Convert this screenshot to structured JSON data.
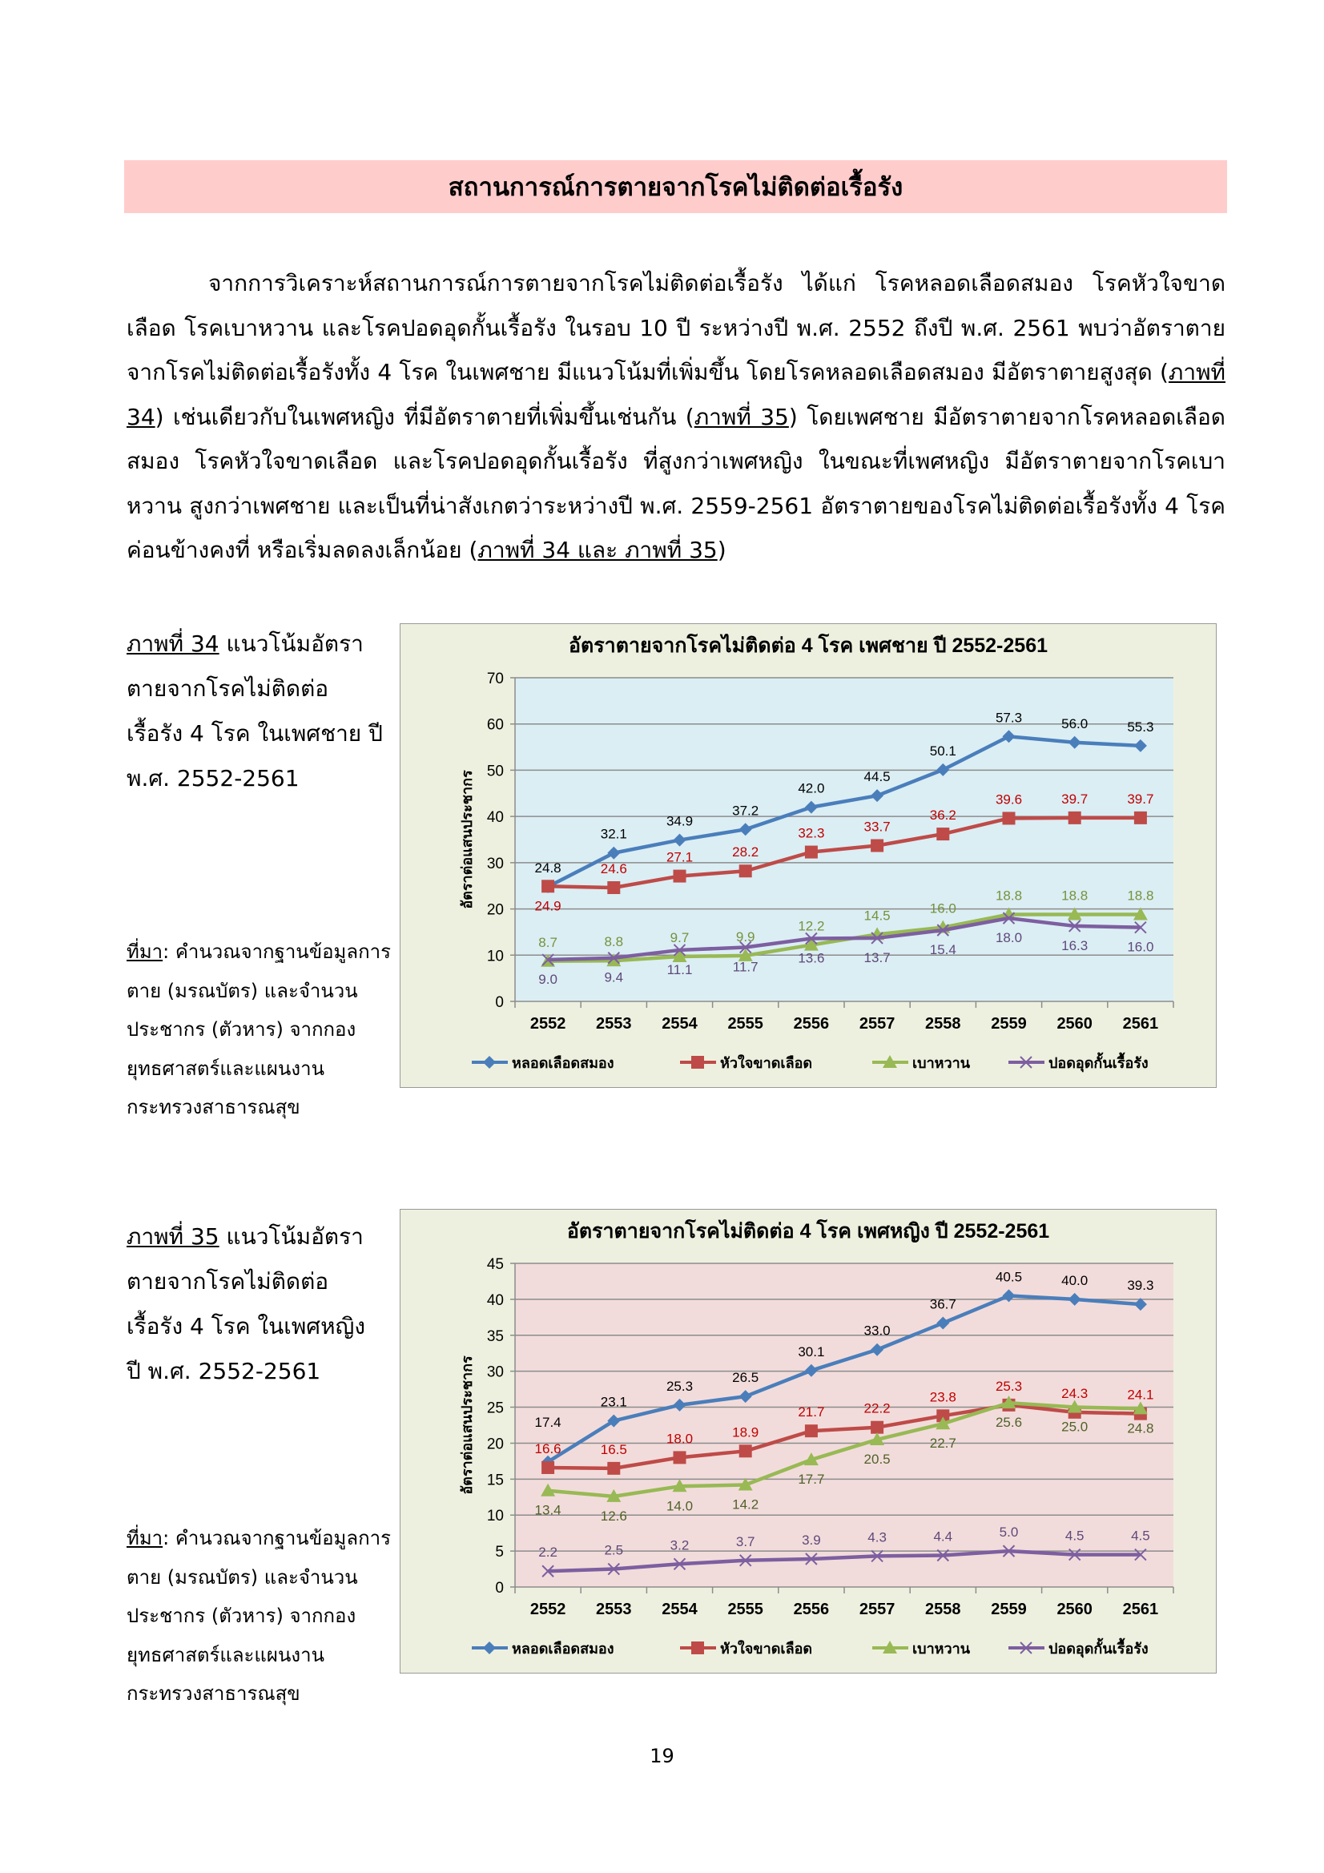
{
  "header": {
    "title": "สถานการณ์การตายจากโรคไม่ติดต่อเรื้อรัง"
  },
  "paragraph": {
    "p1": "จากการวิเคราะห์สถานการณ์การตายจากโรคไม่ติดต่อเรื้อรัง ได้แก่ โรคหลอดเลือดสมอง โรคหัวใจขาดเลือด โรคเบาหวาน และโรคปอดอุดกั้นเรื้อรัง ในรอบ 10 ปี ระหว่างปี พ.ศ. 2552 ถึงปี พ.ศ. 2561 พบว่าอัตราตายจากโรคไม่ติดต่อเรื้อรังทั้ง 4 โรค ในเพศชาย มีแนวโน้มที่เพิ่มขึ้น โดยโรคหลอดเลือดสมอง มีอัตราตายสูงสุด (",
    "ref1": "ภาพที่ 34",
    "p2": ") เช่นเดียวกับในเพศหญิง ที่มีอัตราตายที่เพิ่มขึ้นเช่นกัน (",
    "ref2": "ภาพที่ 35",
    "p3": ") โดยเพศชาย มีอัตราตายจากโรคหลอดเลือดสมอง โรคหัวใจขาดเลือด และโรคปอดอุดกั้นเรื้อรัง ที่สูงกว่าเพศหญิง ในขณะที่เพศหญิง มีอัตราตายจากโรคเบาหวาน สูงกว่าเพศชาย และเป็นที่น่าสังเกตว่าระหว่างปี พ.ศ. 2559-2561 อัตราตายของโรคไม่ติดต่อเรื้อรังทั้ง 4 โรค ค่อนข้างคงที่ หรือเริ่มลดลงเล็กน้อย (",
    "ref3": "ภาพที่ 34 และ ภาพที่ 35",
    "p4": ")"
  },
  "figure34": {
    "ref": "ภาพที่ 34",
    "caption": " แนวโน้มอัตราตายจากโรคไม่ติดต่อเรื้อรัง 4 โรค ในเพศชาย ปี พ.ศ. 2552-2561",
    "source_label": "ที่มา",
    "source_text": ": คำนวณจากฐานข้อมูลการตาย (มรณบัตร) และจำนวนประชากร (ตัวหาร) จากกองยุทธศาสตร์และแผนงาน กระทรวงสาธารณสุข"
  },
  "figure35": {
    "ref": "ภาพที่ 35",
    "caption": " แนวโน้มอัตราตายจากโรคไม่ติดต่อเรื้อรัง 4 โรค ในเพศหญิง ปี พ.ศ. 2552-2561",
    "source_label": "ที่มา",
    "source_text": ": คำนวณจากฐานข้อมูลการตาย (มรณบัตร) และจำนวนประชากร (ตัวหาร) จากกองยุทธศาสตร์และแผนงาน กระทรวงสาธารณสุข"
  },
  "page_number": "19",
  "chart_data": [
    {
      "type": "line",
      "title": "อัตราตายจากโรคไม่ติดต่อ 4 โรค เพศชาย ปี 2552-2561",
      "ylabel": "อัตราต่อแสนประชากร",
      "xlabel": "",
      "categories": [
        "2552",
        "2553",
        "2554",
        "2555",
        "2556",
        "2557",
        "2558",
        "2559",
        "2560",
        "2561"
      ],
      "ylim": [
        0,
        70
      ],
      "yticks": [
        0,
        10,
        20,
        30,
        40,
        50,
        60,
        70
      ],
      "grid": true,
      "legend": "bottom",
      "plot_background": "#dbeef4",
      "frame_background": "#eef0df",
      "series": [
        {
          "name": "หลอดเลือดสมอง",
          "color": "#4a7ebb",
          "label_color": "#000000",
          "marker": "diamond",
          "values": [
            24.8,
            32.1,
            34.9,
            37.2,
            42.0,
            44.5,
            50.1,
            57.3,
            56.0,
            55.3
          ]
        },
        {
          "name": "หัวใจขาดเลือด",
          "color": "#be4b48",
          "label_color": "#c00000",
          "marker": "square",
          "values": [
            24.9,
            24.6,
            27.1,
            28.2,
            32.3,
            33.7,
            36.2,
            39.6,
            39.7,
            39.7
          ]
        },
        {
          "name": "เบาหวาน",
          "color": "#98b954",
          "label_color": "#76923c",
          "marker": "triangle",
          "values": [
            8.7,
            8.8,
            9.7,
            9.9,
            12.2,
            14.5,
            16.0,
            18.8,
            18.8,
            18.8
          ]
        },
        {
          "name": "ปอดอุดกั้นเรื้อรัง",
          "color": "#7d5fa0",
          "label_color": "#5f497a",
          "marker": "x",
          "values": [
            9.0,
            9.4,
            11.1,
            11.7,
            13.6,
            13.7,
            15.4,
            18.0,
            16.3,
            16.0
          ]
        }
      ]
    },
    {
      "type": "line",
      "title": "อัตราตายจากโรคไม่ติดต่อ 4 โรค เพศหญิง ปี 2552-2561",
      "ylabel": "อัตราต่อแสนประชากร",
      "xlabel": "",
      "categories": [
        "2552",
        "2553",
        "2554",
        "2555",
        "2556",
        "2557",
        "2558",
        "2559",
        "2560",
        "2561"
      ],
      "ylim": [
        0,
        45
      ],
      "yticks": [
        0,
        5,
        10,
        15,
        20,
        25,
        30,
        35,
        40,
        45
      ],
      "grid": true,
      "legend": "bottom",
      "plot_background": "#f2dcdb",
      "frame_background": "#eef0df",
      "series": [
        {
          "name": "หลอดเลือดสมอง",
          "color": "#4a7ebb",
          "label_color": "#000000",
          "marker": "diamond",
          "values": [
            17.4,
            23.1,
            25.3,
            26.5,
            30.1,
            33.0,
            36.7,
            40.5,
            40.0,
            39.3
          ]
        },
        {
          "name": "หัวใจขาดเลือด",
          "color": "#be4b48",
          "label_color": "#c00000",
          "marker": "square",
          "values": [
            16.6,
            16.5,
            18.0,
            18.9,
            21.7,
            22.2,
            23.8,
            25.3,
            24.3,
            24.1
          ]
        },
        {
          "name": "เบาหวาน",
          "color": "#98b954",
          "label_color": "#4f6228",
          "marker": "triangle",
          "values": [
            13.4,
            12.6,
            14.0,
            14.2,
            17.7,
            20.5,
            22.7,
            25.6,
            25.0,
            24.8
          ]
        },
        {
          "name": "ปอดอุดกั้นเรื้อรัง",
          "color": "#7d5fa0",
          "label_color": "#5f497a",
          "marker": "x",
          "values": [
            2.2,
            2.5,
            3.2,
            3.7,
            3.9,
            4.3,
            4.4,
            5.0,
            4.5,
            4.5
          ]
        }
      ]
    }
  ]
}
